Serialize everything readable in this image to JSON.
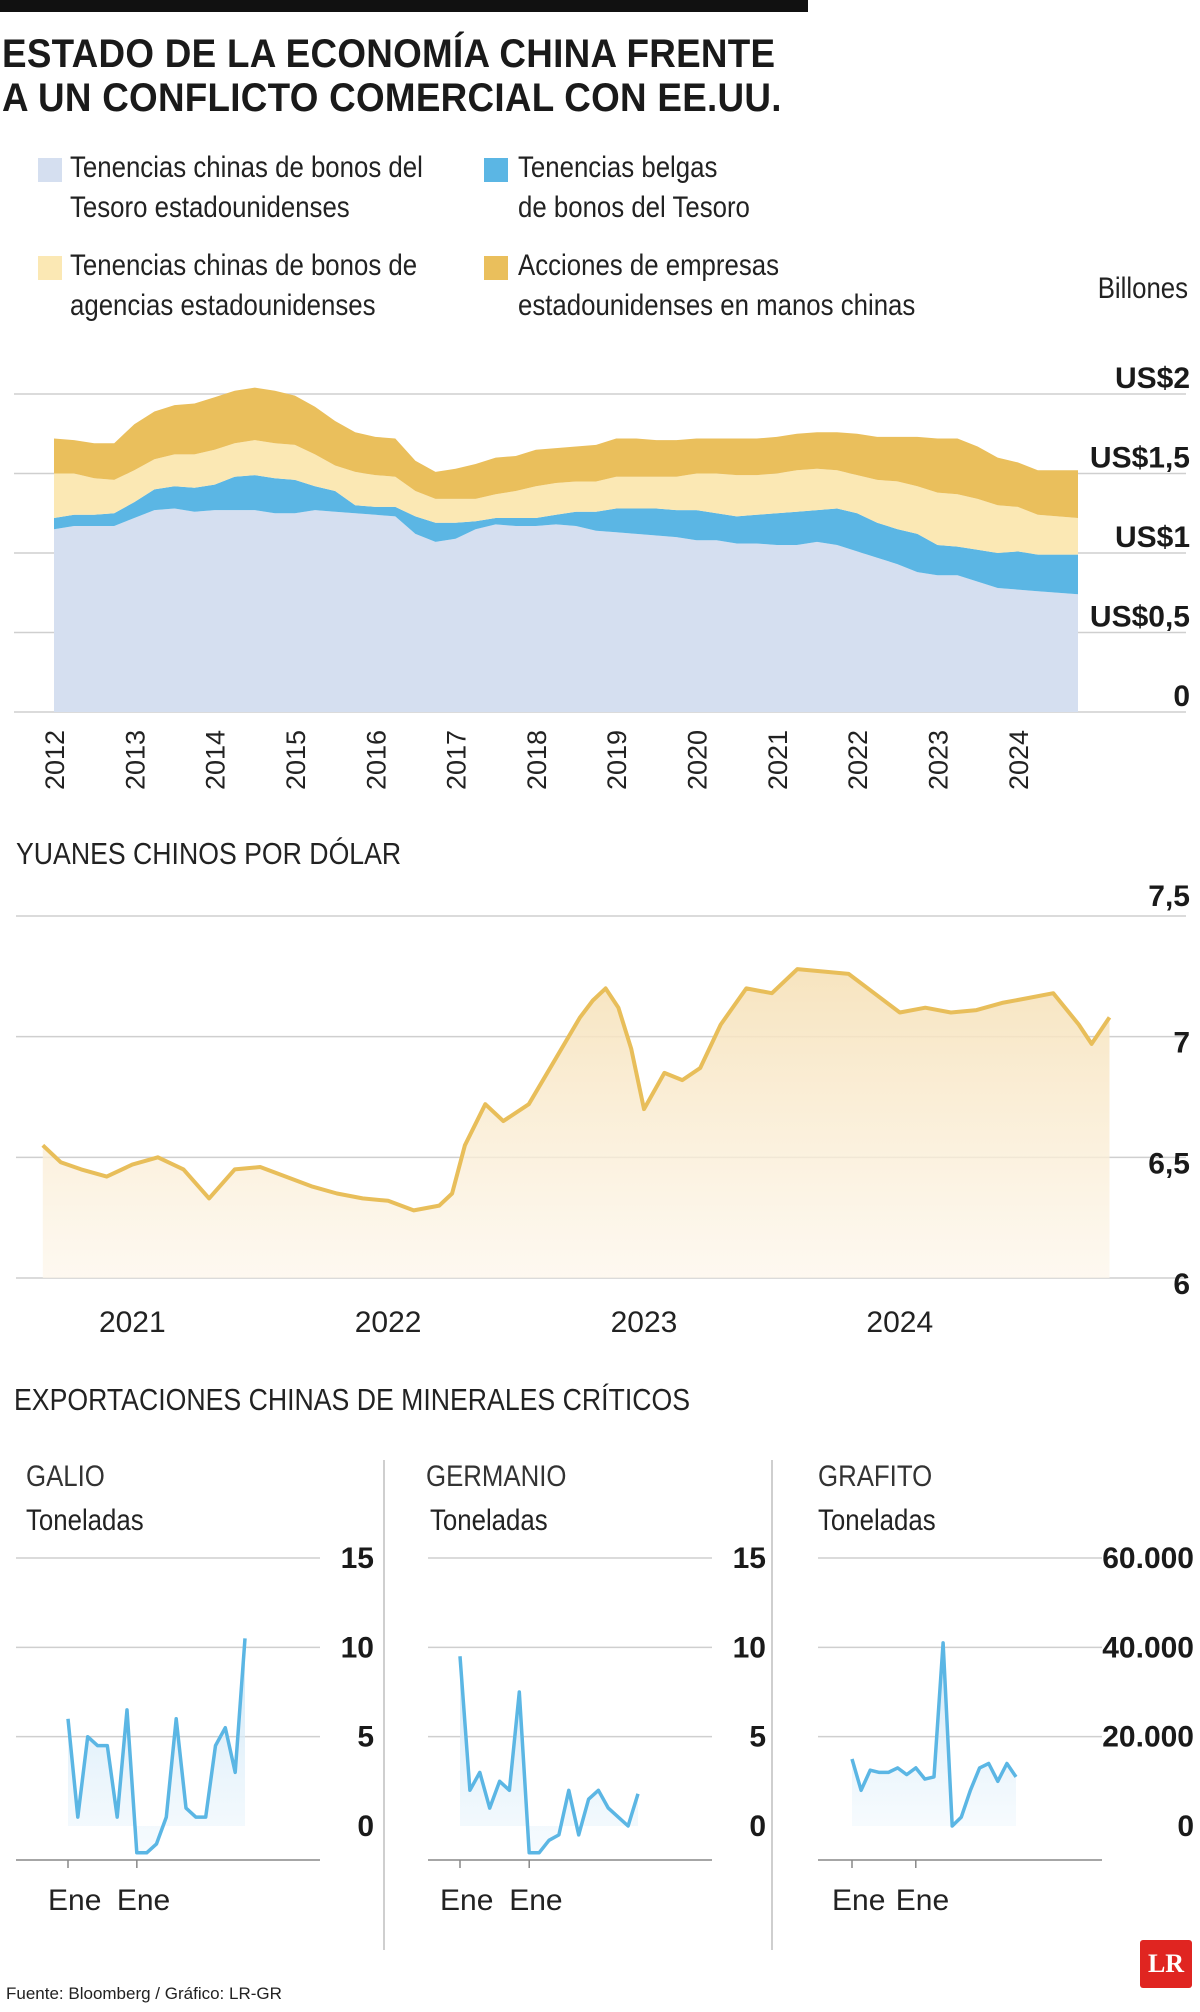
{
  "title": {
    "line1": "ESTADO DE LA ECONOMÍA CHINA FRENTE",
    "line2": "A UN CONFLICTO COMERCIAL CON EE.UU."
  },
  "holdings": {
    "legend": [
      {
        "line1": "Tenencias chinas de bonos del",
        "line2": "Tesoro estadounidenses",
        "color": "#d5dff0"
      },
      {
        "line1": "Tenencias belgas",
        "line2": "de bonos del Tesoro",
        "color": "#5bb6e4"
      },
      {
        "line1": "Tenencias chinas de bonos de",
        "line2": "agencias estadounidenses",
        "color": "#fbe8b4"
      },
      {
        "line1": "Acciones de empresas",
        "line2": "estadounidenses en manos chinas",
        "color": "#eabf5c"
      }
    ],
    "unit": "Billones"
  },
  "yuan": {
    "title": "YUANES CHINOS POR DÓLAR"
  },
  "minerals": {
    "title": "EXPORTACIONES CHINAS DE MINERALES CRÍTICOS",
    "panels": [
      {
        "name": "GALIO",
        "unit": "Toneladas"
      },
      {
        "name": "GERMANIO",
        "unit": "Toneladas"
      },
      {
        "name": "GRAFITO",
        "unit": "Toneladas"
      }
    ]
  },
  "source": "Fuente: Bloomberg / Gráfico: LR-GR",
  "logo": "LR",
  "chart_data": [
    {
      "type": "area",
      "stacked": true,
      "title": "Tenencias (billones US$)",
      "x": [
        2012.0,
        2012.25,
        2012.5,
        2012.75,
        2013.0,
        2013.25,
        2013.5,
        2013.75,
        2014.0,
        2014.25,
        2014.5,
        2014.75,
        2015.0,
        2015.25,
        2015.5,
        2015.75,
        2016.0,
        2016.25,
        2016.5,
        2016.75,
        2017.0,
        2017.25,
        2017.5,
        2017.75,
        2018.0,
        2018.25,
        2018.5,
        2018.75,
        2019.0,
        2019.25,
        2019.5,
        2019.75,
        2020.0,
        2020.25,
        2020.5,
        2020.75,
        2021.0,
        2021.25,
        2021.5,
        2021.75,
        2022.0,
        2022.25,
        2022.5,
        2022.75,
        2023.0,
        2023.25,
        2023.5,
        2023.75,
        2024.0,
        2024.25,
        2024.5,
        2024.75
      ],
      "series": [
        {
          "name": "Tenencias chinas de bonos del Tesoro estadounidenses",
          "values": [
            1.15,
            1.17,
            1.17,
            1.17,
            1.22,
            1.27,
            1.28,
            1.26,
            1.27,
            1.27,
            1.27,
            1.25,
            1.25,
            1.27,
            1.26,
            1.25,
            1.24,
            1.23,
            1.12,
            1.07,
            1.09,
            1.15,
            1.18,
            1.17,
            1.17,
            1.18,
            1.17,
            1.14,
            1.13,
            1.12,
            1.11,
            1.1,
            1.08,
            1.08,
            1.06,
            1.06,
            1.05,
            1.05,
            1.07,
            1.05,
            1.01,
            0.97,
            0.93,
            0.88,
            0.86,
            0.86,
            0.82,
            0.78,
            0.77,
            0.76,
            0.75,
            0.74
          ]
        },
        {
          "name": "Tenencias belgas de bonos del Tesoro",
          "values": [
            0.07,
            0.07,
            0.07,
            0.08,
            0.1,
            0.13,
            0.14,
            0.15,
            0.16,
            0.21,
            0.22,
            0.22,
            0.21,
            0.15,
            0.13,
            0.05,
            0.05,
            0.06,
            0.11,
            0.12,
            0.1,
            0.05,
            0.04,
            0.05,
            0.05,
            0.06,
            0.09,
            0.12,
            0.15,
            0.16,
            0.17,
            0.17,
            0.19,
            0.17,
            0.17,
            0.18,
            0.2,
            0.21,
            0.2,
            0.23,
            0.24,
            0.22,
            0.22,
            0.24,
            0.19,
            0.18,
            0.2,
            0.22,
            0.24,
            0.23,
            0.24,
            0.25
          ]
        },
        {
          "name": "Tenencias chinas de bonos de agencias estadounidenses",
          "values": [
            0.28,
            0.26,
            0.23,
            0.21,
            0.2,
            0.19,
            0.2,
            0.21,
            0.22,
            0.21,
            0.22,
            0.22,
            0.22,
            0.2,
            0.16,
            0.21,
            0.2,
            0.19,
            0.16,
            0.15,
            0.15,
            0.14,
            0.15,
            0.17,
            0.2,
            0.2,
            0.19,
            0.19,
            0.2,
            0.2,
            0.2,
            0.21,
            0.23,
            0.25,
            0.26,
            0.25,
            0.25,
            0.26,
            0.26,
            0.24,
            0.24,
            0.27,
            0.3,
            0.3,
            0.33,
            0.33,
            0.32,
            0.3,
            0.28,
            0.25,
            0.24,
            0.23
          ]
        },
        {
          "name": "Acciones de empresas estadounidenses en manos chinas",
          "values": [
            0.22,
            0.21,
            0.22,
            0.23,
            0.29,
            0.3,
            0.31,
            0.32,
            0.33,
            0.33,
            0.33,
            0.33,
            0.31,
            0.3,
            0.28,
            0.25,
            0.24,
            0.24,
            0.19,
            0.17,
            0.19,
            0.22,
            0.23,
            0.22,
            0.23,
            0.22,
            0.22,
            0.23,
            0.24,
            0.24,
            0.23,
            0.23,
            0.22,
            0.22,
            0.23,
            0.23,
            0.23,
            0.23,
            0.23,
            0.24,
            0.26,
            0.27,
            0.28,
            0.31,
            0.34,
            0.35,
            0.33,
            0.3,
            0.28,
            0.28,
            0.29,
            0.3
          ]
        }
      ],
      "ylabel": "Billones",
      "ylim": [
        0,
        2
      ],
      "yticks": [
        "0",
        "US$0,5",
        "US$1",
        "US$1,5",
        "US$2"
      ],
      "xticks": [
        "2012",
        "2013",
        "2014",
        "2015",
        "2016",
        "2017",
        "2018",
        "2019",
        "2020",
        "2021",
        "2022",
        "2023",
        "2024"
      ]
    },
    {
      "type": "line",
      "title": "YUANES CHINOS POR DÓLAR",
      "x": [
        2020.65,
        2020.72,
        2020.8,
        2020.9,
        2021.0,
        2021.1,
        2021.2,
        2021.3,
        2021.4,
        2021.5,
        2021.6,
        2021.7,
        2021.8,
        2021.9,
        2022.0,
        2022.1,
        2022.2,
        2022.25,
        2022.3,
        2022.38,
        2022.45,
        2022.55,
        2022.65,
        2022.75,
        2022.8,
        2022.85,
        2022.9,
        2022.95,
        2023.0,
        2023.08,
        2023.15,
        2023.22,
        2023.3,
        2023.4,
        2023.5,
        2023.6,
        2023.7,
        2023.8,
        2023.9,
        2024.0,
        2024.1,
        2024.2,
        2024.3,
        2024.4,
        2024.5,
        2024.6,
        2024.7,
        2024.75,
        2024.82
      ],
      "values": [
        6.55,
        6.48,
        6.45,
        6.42,
        6.47,
        6.5,
        6.45,
        6.33,
        6.45,
        6.46,
        6.42,
        6.38,
        6.35,
        6.33,
        6.32,
        6.28,
        6.3,
        6.35,
        6.55,
        6.72,
        6.65,
        6.72,
        6.9,
        7.08,
        7.15,
        7.2,
        7.12,
        6.95,
        6.7,
        6.85,
        6.82,
        6.87,
        7.05,
        7.2,
        7.18,
        7.28,
        7.27,
        7.26,
        7.18,
        7.1,
        7.12,
        7.1,
        7.11,
        7.14,
        7.16,
        7.18,
        7.05,
        6.97,
        7.08
      ],
      "ylim": [
        6,
        7.5
      ],
      "yticks": [
        "6",
        "6,5",
        "7",
        "7,5"
      ],
      "xticks": [
        "2021",
        "2022",
        "2023",
        "2024"
      ]
    },
    {
      "type": "line",
      "title": "GALIO",
      "ylabel": "Toneladas",
      "x": [
        0,
        1,
        2,
        3,
        4,
        5,
        6,
        7,
        8,
        9,
        10,
        11,
        12,
        13,
        14,
        15,
        16,
        17,
        18
      ],
      "values": [
        6,
        0.5,
        5,
        4.5,
        4.5,
        0.5,
        6.5,
        -1.5,
        -1.5,
        -1,
        0.5,
        6,
        1,
        0.5,
        0.5,
        4.5,
        5.5,
        3,
        10.5
      ],
      "ylim": [
        0,
        15
      ],
      "yticks": [
        "0",
        "5",
        "10",
        "15"
      ],
      "xticks": [
        "Ene 2023",
        "Ene 2024"
      ]
    },
    {
      "type": "line",
      "title": "GERMANIO",
      "ylabel": "Toneladas",
      "x": [
        0,
        1,
        2,
        3,
        4,
        5,
        6,
        7,
        8,
        9,
        10,
        11,
        12,
        13,
        14,
        15,
        16,
        17,
        18
      ],
      "values": [
        9.5,
        2,
        3,
        1,
        2.5,
        2,
        7.5,
        -1.5,
        -1.5,
        -0.8,
        -0.5,
        2,
        -0.5,
        1.5,
        2,
        1,
        0.5,
        0,
        1.8
      ],
      "ylim": [
        0,
        15
      ],
      "yticks": [
        "0",
        "5",
        "10",
        "15"
      ],
      "xticks": [
        "Ene 2023",
        "Ene 2024"
      ]
    },
    {
      "type": "line",
      "title": "GRAFITO",
      "ylabel": "Toneladas",
      "x": [
        0,
        1,
        2,
        3,
        4,
        5,
        6,
        7,
        8,
        9,
        10,
        11,
        12,
        13,
        14,
        15,
        16,
        17,
        18
      ],
      "values": [
        15000,
        8000,
        12500,
        12000,
        12000,
        13000,
        11500,
        13000,
        10500,
        11000,
        41000,
        0,
        2000,
        8000,
        13000,
        14000,
        10000,
        14000,
        11000
      ],
      "ylim": [
        0,
        60000
      ],
      "yticks": [
        "0",
        "20.000",
        "40.000",
        "60.000"
      ],
      "xticks": [
        "Ene 2023",
        "Ene 2024"
      ]
    }
  ]
}
